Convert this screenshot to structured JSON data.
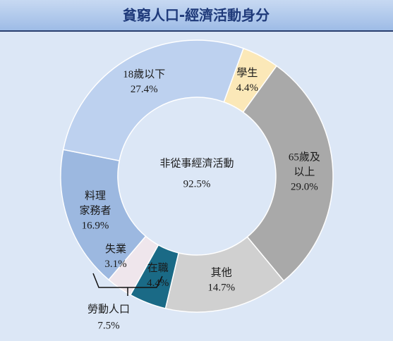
{
  "chart_data": {
    "type": "donut",
    "title": "貧窮人口-經濟活動身分",
    "categories": [
      [
        "學生"
      ],
      [
        "65歲及",
        "以上"
      ],
      [
        "其他"
      ],
      [
        "在職"
      ],
      [
        "失業"
      ],
      [
        "料理",
        "家務者"
      ],
      [
        "18歲以下"
      ]
    ],
    "values": [
      4.4,
      29.0,
      14.7,
      4.4,
      3.1,
      16.9,
      27.4
    ],
    "value_labels": [
      "4.4%",
      "29.0%",
      "14.7%",
      "4.4%",
      "3.1%",
      "16.9%",
      "27.4%"
    ],
    "colors": [
      "#fbe8b8",
      "#a9a9a9",
      "#d0d0d0",
      "#1a6a86",
      "#efe6ec",
      "#9cb8e0",
      "#bdd1ef"
    ],
    "annotations": [
      {
        "text": "非從事經濟活動",
        "value_label": "92.5%"
      },
      {
        "text": "勞動人口",
        "value_label": "7.5%"
      }
    ]
  }
}
